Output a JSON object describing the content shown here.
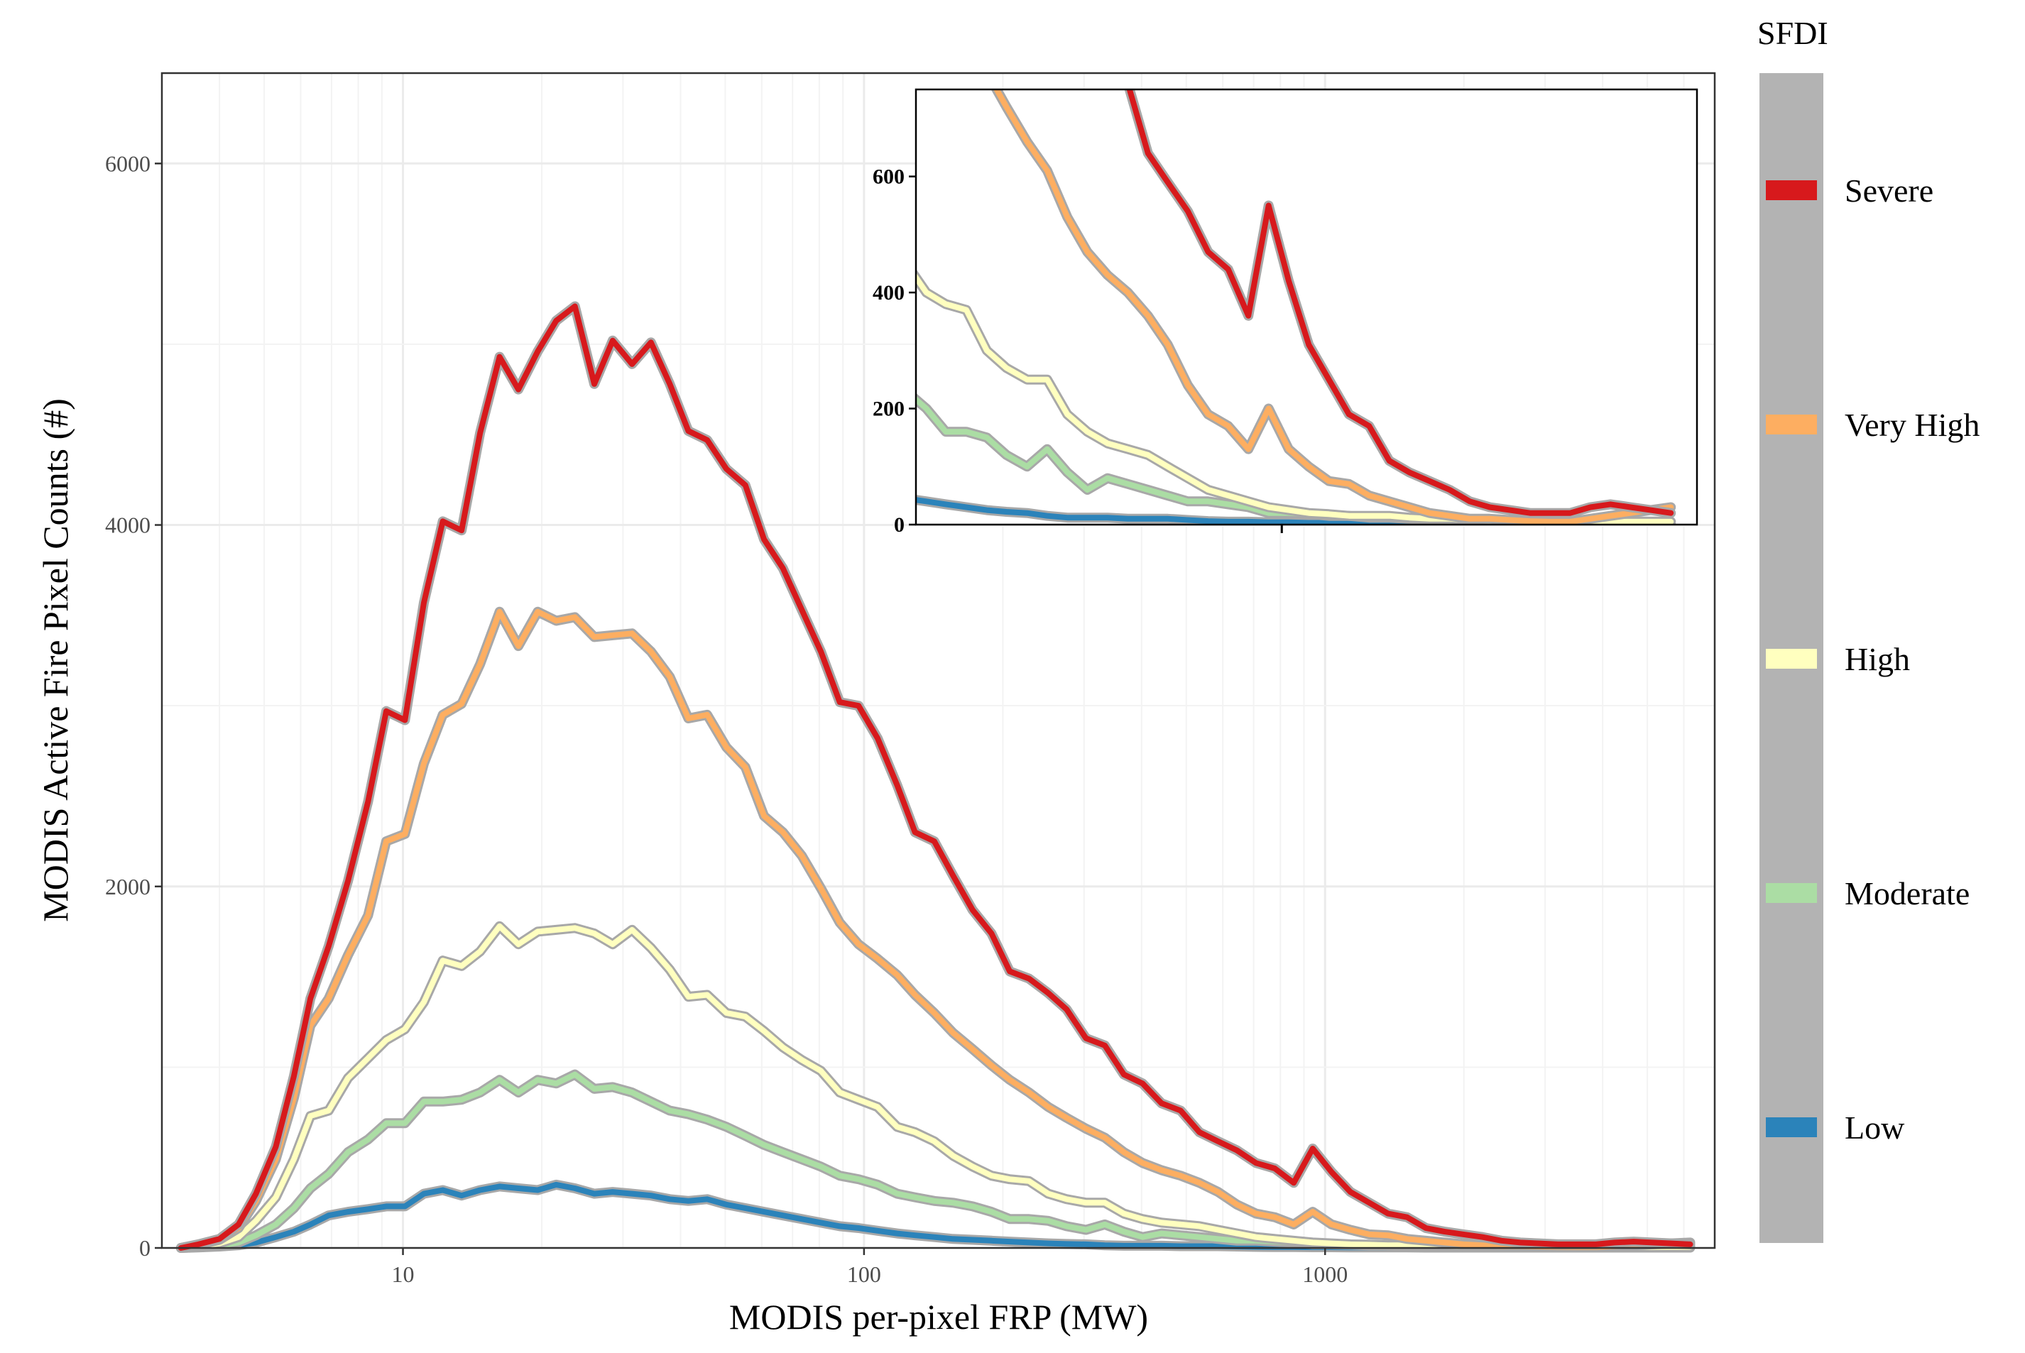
{
  "chart_data": {
    "type": "line",
    "x_scale": "log",
    "xlabel": "MODIS per-pixel FRP (MW)",
    "ylabel": "MODIS Active Fire Pixel Counts (#)",
    "xlim": [
      3,
      7000
    ],
    "ylim": [
      0,
      6500
    ],
    "x_ticks": [
      10,
      100,
      1000
    ],
    "x_tick_labels": [
      "10",
      "100",
      "1000"
    ],
    "y_ticks": [
      0,
      2000,
      4000,
      6000
    ],
    "y_tick_labels": [
      "0",
      "2000",
      "4000",
      "6000"
    ],
    "grid": true,
    "legend": {
      "title": "SFDI",
      "position": "right"
    },
    "x": [
      3.3,
      3.6,
      4.0,
      4.4,
      4.8,
      5.3,
      5.8,
      6.3,
      6.9,
      7.6,
      8.4,
      9.2,
      10.1,
      11.1,
      12.2,
      13.4,
      14.7,
      16.2,
      17.8,
      19.6,
      21.5,
      23.6,
      26.0,
      28.5,
      31.4,
      34.5,
      37.9,
      41.6,
      45.7,
      50.3,
      55.3,
      60.7,
      66.7,
      73.3,
      80.6,
      88.6,
      97.3,
      107,
      118,
      129,
      142,
      156,
      172,
      189,
      207,
      228,
      251,
      275,
      303,
      333,
      366,
      402,
      442,
      486,
      534,
      586,
      644,
      708,
      778,
      855,
      940,
      1033,
      1135,
      1247,
      1370,
      1506,
      1655,
      1818,
      1998,
      2196,
      2413,
      2651,
      2913,
      3201,
      3518,
      3865,
      4248,
      4667,
      5129,
      5636,
      6193
    ],
    "series": [
      {
        "name": "Severe",
        "color": "#d7191c",
        "values": [
          0,
          20,
          50,
          130,
          300,
          560,
          950,
          1380,
          1670,
          2030,
          2470,
          2970,
          2920,
          3570,
          4020,
          3970,
          4510,
          4930,
          4750,
          4960,
          5130,
          5210,
          4780,
          5020,
          4890,
          5010,
          4780,
          4520,
          4470,
          4310,
          4220,
          3920,
          3760,
          3530,
          3300,
          3020,
          3000,
          2820,
          2560,
          2300,
          2250,
          2060,
          1870,
          1740,
          1530,
          1490,
          1410,
          1320,
          1160,
          1120,
          960,
          910,
          800,
          760,
          640,
          590,
          540,
          470,
          440,
          360,
          550,
          420,
          310,
          250,
          190,
          170,
          110,
          90,
          75,
          60,
          40,
          30,
          25,
          20,
          20,
          20,
          30,
          35,
          30,
          25,
          20
        ]
      },
      {
        "name": "Very High",
        "color": "#fdae61",
        "values": [
          0,
          18,
          45,
          110,
          260,
          490,
          830,
          1230,
          1380,
          1620,
          1840,
          2250,
          2290,
          2680,
          2950,
          3010,
          3230,
          3520,
          3330,
          3520,
          3470,
          3490,
          3380,
          3390,
          3400,
          3300,
          3160,
          2930,
          2950,
          2770,
          2660,
          2390,
          2300,
          2170,
          1990,
          1800,
          1680,
          1600,
          1510,
          1400,
          1300,
          1190,
          1100,
          1010,
          930,
          860,
          780,
          720,
          660,
          610,
          530,
          470,
          430,
          400,
          360,
          310,
          240,
          190,
          170,
          130,
          200,
          130,
          100,
          75,
          70,
          50,
          40,
          30,
          20,
          15,
          10,
          10,
          8,
          6,
          5,
          5,
          10,
          15,
          20,
          25,
          30
        ]
      },
      {
        "name": "High",
        "color": "#ffffbf",
        "values": [
          0,
          10,
          25,
          60,
          150,
          280,
          490,
          730,
          760,
          940,
          1050,
          1150,
          1210,
          1360,
          1590,
          1560,
          1640,
          1780,
          1680,
          1750,
          1760,
          1770,
          1740,
          1680,
          1760,
          1660,
          1540,
          1390,
          1400,
          1300,
          1280,
          1200,
          1110,
          1040,
          980,
          860,
          820,
          780,
          670,
          640,
          590,
          510,
          450,
          400,
          380,
          370,
          300,
          270,
          250,
          250,
          190,
          160,
          140,
          130,
          120,
          100,
          80,
          60,
          50,
          40,
          30,
          25,
          20,
          18,
          15,
          15,
          15,
          12,
          10,
          10,
          8,
          6,
          5,
          5,
          5,
          5,
          5,
          5,
          5,
          5,
          5
        ]
      },
      {
        "name": "Moderate",
        "color": "#abdda4",
        "values": [
          0,
          5,
          12,
          30,
          70,
          130,
          220,
          330,
          410,
          530,
          600,
          690,
          690,
          810,
          810,
          820,
          860,
          930,
          860,
          930,
          910,
          960,
          880,
          890,
          860,
          810,
          760,
          740,
          710,
          670,
          620,
          570,
          530,
          490,
          450,
          400,
          380,
          350,
          300,
          280,
          260,
          250,
          230,
          200,
          160,
          160,
          150,
          120,
          100,
          130,
          90,
          60,
          80,
          70,
          60,
          50,
          40,
          40,
          35,
          30,
          20,
          20,
          18,
          15,
          15,
          12,
          12,
          10,
          8,
          6,
          5,
          5,
          5,
          5,
          5,
          5,
          5,
          5,
          5,
          5,
          5
        ]
      },
      {
        "name": "Low",
        "color": "#2b83ba",
        "values": [
          0,
          3,
          8,
          15,
          30,
          60,
          90,
          130,
          180,
          200,
          215,
          230,
          230,
          300,
          320,
          290,
          320,
          340,
          330,
          320,
          350,
          330,
          300,
          310,
          300,
          290,
          270,
          260,
          270,
          240,
          220,
          200,
          180,
          160,
          140,
          120,
          110,
          95,
          80,
          70,
          60,
          50,
          45,
          40,
          35,
          30,
          25,
          22,
          20,
          15,
          12,
          12,
          12,
          10,
          10,
          10,
          8,
          6,
          5,
          5,
          4,
          4,
          3,
          3,
          3,
          3,
          2,
          2,
          2,
          2,
          2,
          2,
          2,
          2,
          2,
          2,
          2,
          2,
          2,
          2,
          2
        ]
      }
    ],
    "inset": {
      "ylim": [
        0,
        750
      ],
      "xlim": [
        180,
        7000
      ],
      "y_ticks": [
        0,
        200,
        400,
        600
      ],
      "y_tick_labels": [
        "0",
        "200",
        "400",
        "600"
      ],
      "x_ticks": [
        1000
      ]
    }
  }
}
